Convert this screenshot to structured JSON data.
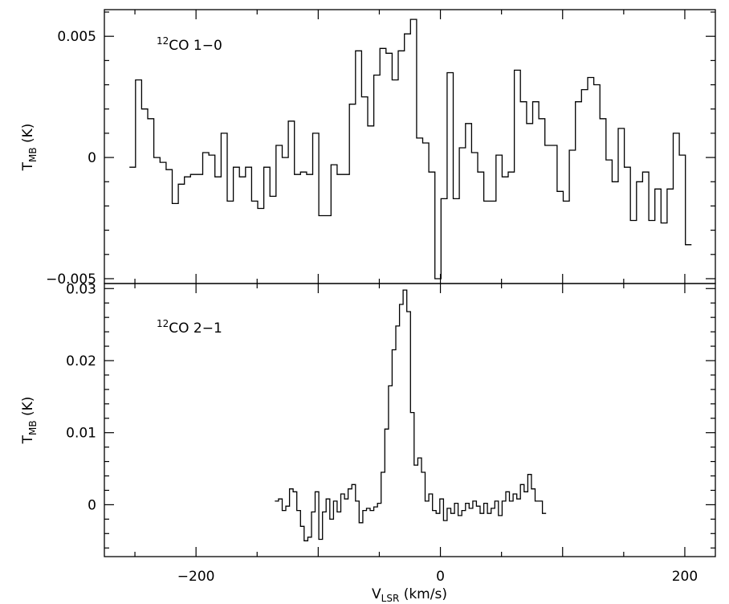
{
  "chart_data": [
    {
      "type": "line",
      "step": true,
      "annotation": {
        "sup": "12",
        "text": "CO 1−0"
      },
      "ylabel": {
        "main": "T",
        "sub": "MB",
        "unit": " (K)"
      },
      "xlim": [
        -275,
        225
      ],
      "ylim": [
        -0.0052,
        0.0061
      ],
      "yticks": [
        -0.005,
        0,
        0.005
      ],
      "ytick_labels": [
        "−0.005",
        "0",
        "0.005"
      ],
      "x": [
        -252,
        -247,
        -242,
        -237,
        -232,
        -227,
        -222,
        -217,
        -212,
        -207,
        -202,
        -197,
        -192,
        -187,
        -182,
        -177,
        -172,
        -167,
        -162,
        -157,
        -152,
        -147,
        -142,
        -137,
        -132,
        -127,
        -122,
        -117,
        -112,
        -107,
        -102,
        -97,
        -92,
        -87,
        -82,
        -77,
        -72,
        -67,
        -62,
        -57,
        -52,
        -47,
        -42,
        -37,
        -32,
        -27,
        -22,
        -17,
        -12,
        -7,
        -2,
        3,
        8,
        13,
        18,
        23,
        28,
        33,
        38,
        43,
        48,
        53,
        58,
        63,
        68,
        73,
        78,
        83,
        88,
        93,
        98,
        103,
        108,
        113,
        118,
        123,
        128,
        133,
        138,
        143,
        148,
        153,
        158,
        163,
        168,
        173,
        178,
        183,
        188,
        193,
        198,
        203
      ],
      "y": [
        -0.0004,
        0.0032,
        0.002,
        0.0016,
        0.0,
        -0.0002,
        -0.0005,
        -0.0019,
        -0.0011,
        -0.0008,
        -0.0007,
        -0.0007,
        0.0002,
        0.0001,
        -0.0008,
        0.001,
        -0.0018,
        -0.0004,
        -0.0008,
        -0.0004,
        -0.0018,
        -0.0021,
        -0.0004,
        -0.0016,
        0.0005,
        0.0,
        0.0015,
        -0.0007,
        -0.0006,
        -0.0007,
        0.001,
        -0.0024,
        -0.0024,
        -0.0003,
        -0.0007,
        -0.0007,
        0.0022,
        0.0044,
        0.0025,
        0.0013,
        0.0034,
        0.0045,
        0.0043,
        0.0032,
        0.0044,
        0.0051,
        0.0057,
        0.0008,
        0.0006,
        -0.0006,
        -0.005,
        -0.0017,
        0.0035,
        -0.0017,
        0.0004,
        0.0014,
        0.0002,
        -0.0006,
        -0.0018,
        -0.0018,
        0.0001,
        -0.0008,
        -0.0006,
        0.0036,
        0.0023,
        0.0014,
        0.0023,
        0.0016,
        0.0005,
        0.0005,
        -0.0014,
        -0.0018,
        0.0003,
        0.0023,
        0.0028,
        0.0033,
        0.003,
        0.0016,
        -0.0001,
        -0.001,
        0.0012,
        -0.0004,
        -0.0026,
        -0.001,
        -0.0006,
        -0.0026,
        -0.0013,
        -0.0027,
        -0.0013,
        0.001,
        0.0001,
        -0.0036
      ]
    },
    {
      "type": "line",
      "step": true,
      "annotation": {
        "sup": "12",
        "text": "CO 2−1"
      },
      "ylabel": {
        "main": "T",
        "sub": "MB",
        "unit": " (K)"
      },
      "xlabel": {
        "main": "V",
        "sub": "LSR",
        "unit": " (km/s)"
      },
      "xlim": [
        -275,
        225
      ],
      "ylim": [
        -0.0072,
        0.0307
      ],
      "yticks": [
        0,
        0.01,
        0.02,
        0.03
      ],
      "ytick_labels": [
        "0",
        "0.01",
        "0.02",
        "0.03"
      ],
      "xticks": [
        -200,
        0,
        200
      ],
      "xtick_labels": [
        "−200",
        "0",
        "200"
      ],
      "x": [
        -134,
        -131,
        -128,
        -125,
        -122,
        -119,
        -116,
        -113,
        -110,
        -107,
        -104,
        -101,
        -98,
        -95,
        -92,
        -89,
        -86,
        -83,
        -80,
        -77,
        -74,
        -71,
        -68,
        -65,
        -62,
        -59,
        -56,
        -53,
        -50,
        -47,
        -44,
        -41,
        -38,
        -35,
        -32,
        -29,
        -26,
        -23,
        -20,
        -17,
        -14,
        -11,
        -8,
        -5,
        -2,
        1,
        4,
        7,
        10,
        13,
        16,
        19,
        22,
        25,
        28,
        31,
        34,
        37,
        40,
        43,
        46,
        49,
        52,
        55,
        58,
        61,
        64,
        67,
        70,
        73,
        76,
        79,
        82,
        85
      ],
      "y": [
        0.0005,
        0.0008,
        -0.0008,
        -0.0002,
        0.0022,
        0.0018,
        -0.0008,
        -0.003,
        -0.005,
        -0.0045,
        -0.001,
        0.0018,
        -0.0048,
        -0.001,
        0.0008,
        -0.002,
        0.0005,
        -0.001,
        0.0015,
        0.0008,
        0.0022,
        0.0028,
        0.0005,
        -0.0025,
        -0.0008,
        -0.0005,
        -0.0008,
        -0.0003,
        0.0002,
        0.0045,
        0.0105,
        0.0165,
        0.0215,
        0.0248,
        0.0278,
        0.0298,
        0.0268,
        0.0128,
        0.0055,
        0.0065,
        0.0045,
        0.0005,
        0.0015,
        -0.0008,
        -0.0012,
        0.0008,
        -0.0022,
        -0.0005,
        -0.0012,
        0.0002,
        -0.0015,
        -0.0008,
        0.0002,
        -0.0005,
        0.0005,
        -0.0002,
        -0.0012,
        0.0002,
        -0.0012,
        -0.0005,
        0.0005,
        -0.0015,
        0.0005,
        0.0018,
        0.0005,
        0.0015,
        0.0008,
        0.0028,
        0.0018,
        0.0042,
        0.0022,
        0.0005,
        0.0005,
        -0.0012
      ]
    }
  ]
}
